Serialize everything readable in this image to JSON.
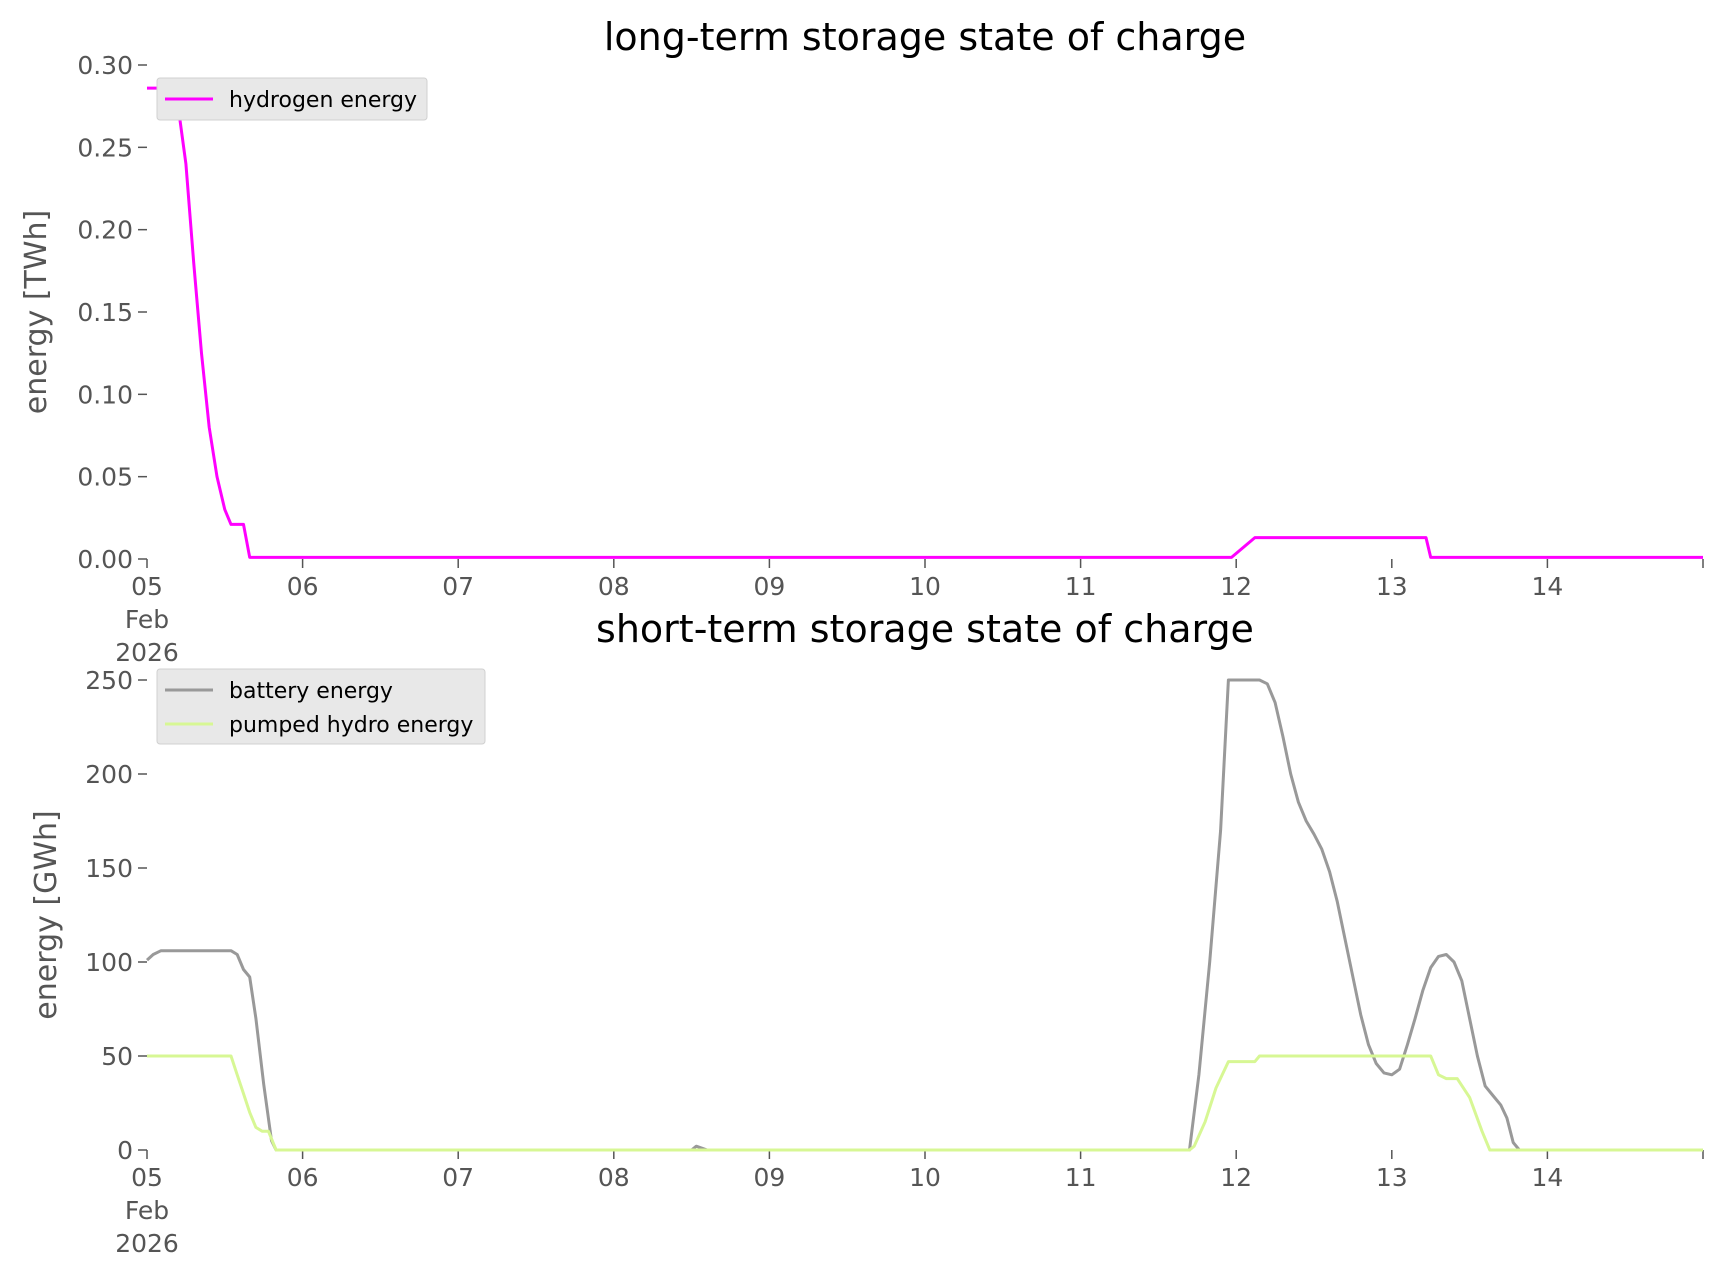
{
  "chart_data": [
    {
      "type": "line",
      "title": "long-term storage state of charge",
      "xlabel": "",
      "ylabel": "energy [TWh]",
      "x_unit": "days since 2026-02-05 00:00",
      "xlim": [
        0,
        10
      ],
      "ylim": [
        0,
        0.3
      ],
      "yticks": [
        0.0,
        0.05,
        0.1,
        0.15,
        0.2,
        0.25,
        0.3
      ],
      "ytick_labels": [
        "0.00",
        "0.05",
        "0.10",
        "0.15",
        "0.20",
        "0.25",
        "0.30"
      ],
      "xticks": [
        {
          "x": 0,
          "label": "05\nFeb\n2026"
        },
        {
          "x": 1,
          "label": "06"
        },
        {
          "x": 2,
          "label": "07"
        },
        {
          "x": 3,
          "label": "08"
        },
        {
          "x": 4,
          "label": "09"
        },
        {
          "x": 5,
          "label": "10"
        },
        {
          "x": 6,
          "label": "11"
        },
        {
          "x": 7,
          "label": "12"
        },
        {
          "x": 8,
          "label": "13"
        },
        {
          "x": 9,
          "label": "14"
        }
      ],
      "grid": false,
      "legend": "top-left",
      "series": [
        {
          "name": "hydrogen energy",
          "color": "#ff00ff",
          "points": [
            [
              0,
              0.286
            ],
            [
              0.125,
              0.286
            ],
            [
              0.16,
              0.285
            ],
            [
              0.2,
              0.275
            ],
            [
              0.25,
              0.24
            ],
            [
              0.3,
              0.18
            ],
            [
              0.35,
              0.125
            ],
            [
              0.4,
              0.08
            ],
            [
              0.45,
              0.05
            ],
            [
              0.5,
              0.03
            ],
            [
              0.54,
              0.021
            ],
            [
              0.62,
              0.021
            ],
            [
              0.66,
              0.001
            ],
            [
              1,
              0.001
            ],
            [
              6.97,
              0.001
            ],
            [
              7.12,
              0.013
            ],
            [
              8.22,
              0.013
            ],
            [
              8.25,
              0.001
            ],
            [
              10,
              0.001
            ]
          ]
        }
      ]
    },
    {
      "type": "line",
      "title": "short-term storage state of charge",
      "xlabel": "",
      "ylabel": "energy [GWh]",
      "x_unit": "days since 2026-02-05 00:00",
      "xlim": [
        0,
        10
      ],
      "ylim": [
        0,
        250
      ],
      "yticks": [
        0,
        50,
        100,
        150,
        200,
        250
      ],
      "ytick_labels": [
        "0",
        "50",
        "100",
        "150",
        "200",
        "250"
      ],
      "xticks": [
        {
          "x": 0,
          "label": "05\nFeb\n2026"
        },
        {
          "x": 1,
          "label": "06"
        },
        {
          "x": 2,
          "label": "07"
        },
        {
          "x": 3,
          "label": "08"
        },
        {
          "x": 4,
          "label": "09"
        },
        {
          "x": 5,
          "label": "10"
        },
        {
          "x": 6,
          "label": "11"
        },
        {
          "x": 7,
          "label": "12"
        },
        {
          "x": 8,
          "label": "13"
        },
        {
          "x": 9,
          "label": "14"
        }
      ],
      "grid": false,
      "legend": "top-left",
      "series": [
        {
          "name": "battery energy",
          "color": "#999999",
          "points": [
            [
              0,
              101
            ],
            [
              0.04,
              104
            ],
            [
              0.09,
              106
            ],
            [
              0.2,
              106
            ],
            [
              0.54,
              106
            ],
            [
              0.58,
              104
            ],
            [
              0.62,
              96
            ],
            [
              0.66,
              92
            ],
            [
              0.7,
              70
            ],
            [
              0.75,
              35
            ],
            [
              0.8,
              5
            ],
            [
              0.83,
              0
            ],
            [
              3.5,
              0
            ],
            [
              3.53,
              2
            ],
            [
              3.6,
              0
            ],
            [
              5.0,
              0
            ],
            [
              6.7,
              0
            ],
            [
              6.76,
              40
            ],
            [
              6.83,
              100
            ],
            [
              6.9,
              170
            ],
            [
              6.95,
              250
            ],
            [
              7.15,
              250
            ],
            [
              7.2,
              248
            ],
            [
              7.25,
              238
            ],
            [
              7.3,
              220
            ],
            [
              7.35,
              200
            ],
            [
              7.4,
              185
            ],
            [
              7.45,
              175
            ],
            [
              7.5,
              168
            ],
            [
              7.55,
              160
            ],
            [
              7.6,
              148
            ],
            [
              7.65,
              132
            ],
            [
              7.7,
              112
            ],
            [
              7.75,
              92
            ],
            [
              7.8,
              72
            ],
            [
              7.85,
              56
            ],
            [
              7.9,
              46
            ],
            [
              7.95,
              41
            ],
            [
              8.0,
              40
            ],
            [
              8.05,
              43
            ],
            [
              8.1,
              56
            ],
            [
              8.15,
              70
            ],
            [
              8.2,
              85
            ],
            [
              8.25,
              97
            ],
            [
              8.3,
              103
            ],
            [
              8.35,
              104
            ],
            [
              8.4,
              100
            ],
            [
              8.45,
              90
            ],
            [
              8.5,
              70
            ],
            [
              8.55,
              50
            ],
            [
              8.6,
              34
            ],
            [
              8.65,
              29
            ],
            [
              8.7,
              24
            ],
            [
              8.74,
              17
            ],
            [
              8.78,
              4
            ],
            [
              8.82,
              0
            ],
            [
              10,
              0
            ]
          ]
        },
        {
          "name": "pumped hydro energy",
          "color": "#d7f794",
          "points": [
            [
              0,
              50
            ],
            [
              0.54,
              50
            ],
            [
              0.58,
              40
            ],
            [
              0.62,
              30
            ],
            [
              0.66,
              20
            ],
            [
              0.7,
              12
            ],
            [
              0.74,
              10
            ],
            [
              0.78,
              10
            ],
            [
              0.83,
              0
            ],
            [
              6.7,
              0
            ],
            [
              6.73,
              2
            ],
            [
              6.8,
              15
            ],
            [
              6.87,
              33
            ],
            [
              6.95,
              47
            ],
            [
              7.12,
              47
            ],
            [
              7.15,
              50
            ],
            [
              8.25,
              50
            ],
            [
              8.3,
              40
            ],
            [
              8.35,
              38
            ],
            [
              8.42,
              38
            ],
            [
              8.5,
              28
            ],
            [
              8.58,
              10
            ],
            [
              8.63,
              0
            ],
            [
              10,
              0
            ]
          ]
        }
      ]
    }
  ]
}
